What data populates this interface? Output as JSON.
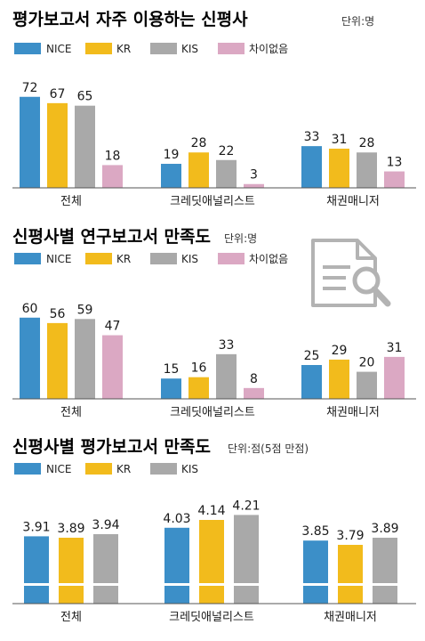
{
  "colors": {
    "NICE": "#3c8fc8",
    "KR": "#f2bb1c",
    "KIS": "#a9a9a9",
    "no_diff": "#dba8c3",
    "axis": "#555555"
  },
  "legend_labels": {
    "NICE": "NICE",
    "KR": "KR",
    "KIS": "KIS",
    "no_diff": "차이없음"
  },
  "chart_data": [
    {
      "type": "bar",
      "title": "평가보고서 자주 이용하는 신평사",
      "unit": "단위:명",
      "categories": [
        "전체",
        "크레딧애널리스트",
        "채권매니저"
      ],
      "series": [
        {
          "name": "NICE",
          "values": [
            72,
            19,
            33
          ]
        },
        {
          "name": "KR",
          "values": [
            67,
            28,
            31
          ]
        },
        {
          "name": "KIS",
          "values": [
            65,
            22,
            28
          ]
        },
        {
          "name": "차이없음",
          "values": [
            18,
            3,
            13
          ]
        }
      ],
      "legend_position": "top-left",
      "grid": false
    },
    {
      "type": "bar",
      "title": "신평사별 연구보고서 만족도",
      "unit": "단위:명",
      "categories": [
        "전체",
        "크레딧애널리스트",
        "채권매니저"
      ],
      "series": [
        {
          "name": "NICE",
          "values": [
            60,
            15,
            25
          ]
        },
        {
          "name": "KR",
          "values": [
            56,
            16,
            29
          ]
        },
        {
          "name": "KIS",
          "values": [
            59,
            33,
            20
          ]
        },
        {
          "name": "차이없음",
          "values": [
            47,
            8,
            31
          ]
        }
      ],
      "legend_position": "top-left",
      "grid": false
    },
    {
      "type": "bar",
      "title": "신평사별 평가보고서 만족도",
      "unit": "단위:점(5점 만점)",
      "categories": [
        "전체",
        "크레딧애널리스트",
        "채권매니저"
      ],
      "series": [
        {
          "name": "NICE",
          "values": [
            3.91,
            4.03,
            3.85
          ]
        },
        {
          "name": "KR",
          "values": [
            3.89,
            4.14,
            3.79
          ]
        },
        {
          "name": "KIS",
          "values": [
            3.94,
            4.21,
            3.89
          ]
        }
      ],
      "legend_position": "top-left",
      "grid": false,
      "axis_break": true
    }
  ]
}
